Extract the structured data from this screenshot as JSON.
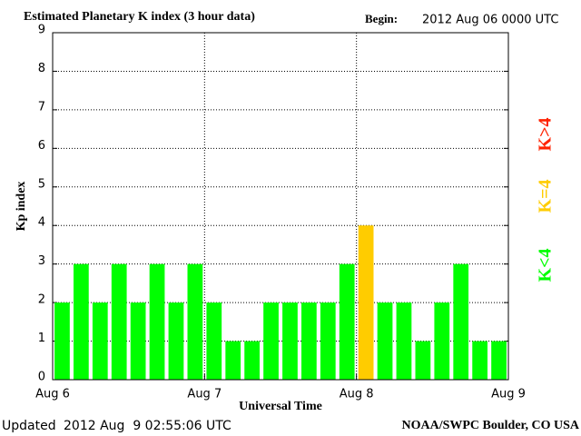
{
  "chart_data": {
    "type": "bar",
    "title": "Estimated Planetary K index (3 hour data)",
    "begin_label": "Begin:",
    "begin_value": "2012 Aug 06 0000 UTC",
    "y_label": "Kp index",
    "x_label": "Universal Time",
    "updated_label": "Updated",
    "updated_value": "2012 Aug  9 02:55:06 UTC",
    "source": "NOAA/SWPC Boulder, CO USA",
    "x": [
      0,
      3,
      6,
      9,
      12,
      15,
      18,
      21,
      24,
      27,
      30,
      33,
      36,
      39,
      42,
      45,
      48,
      51,
      54,
      57,
      60,
      63,
      66,
      69
    ],
    "series": [
      {
        "values": [
          2,
          3,
          2,
          3,
          2,
          3,
          2,
          3,
          2,
          1,
          1,
          2,
          2,
          2,
          2,
          3,
          4,
          2,
          2,
          1,
          2,
          3,
          1,
          1
        ],
        "colors": [
          "#00ff00",
          "#00ff00",
          "#00ff00",
          "#00ff00",
          "#00ff00",
          "#00ff00",
          "#00ff00",
          "#00ff00",
          "#00ff00",
          "#00ff00",
          "#00ff00",
          "#00ff00",
          "#00ff00",
          "#00ff00",
          "#00ff00",
          "#00ff00",
          "#ffcc00",
          "#00ff00",
          "#00ff00",
          "#00ff00",
          "#00ff00",
          "#00ff00",
          "#00ff00",
          "#00ff00"
        ]
      }
    ],
    "xlim": [
      0,
      72
    ],
    "xticks": [
      {
        "value": 0,
        "label": "Aug 6"
      },
      {
        "value": 24,
        "label": "Aug 7"
      },
      {
        "value": 48,
        "label": "Aug 8"
      },
      {
        "value": 72,
        "label": "Aug 9"
      }
    ],
    "ylim": [
      0,
      9
    ],
    "yticks": [
      0,
      1,
      2,
      3,
      4,
      5,
      6,
      7,
      8,
      9
    ],
    "grid": true,
    "legend": [
      {
        "label": "K<4",
        "color": "#00ff00"
      },
      {
        "label": "K=4",
        "color": "#ffcc00"
      },
      {
        "label": "K>4",
        "color": "#ff2200"
      }
    ]
  }
}
